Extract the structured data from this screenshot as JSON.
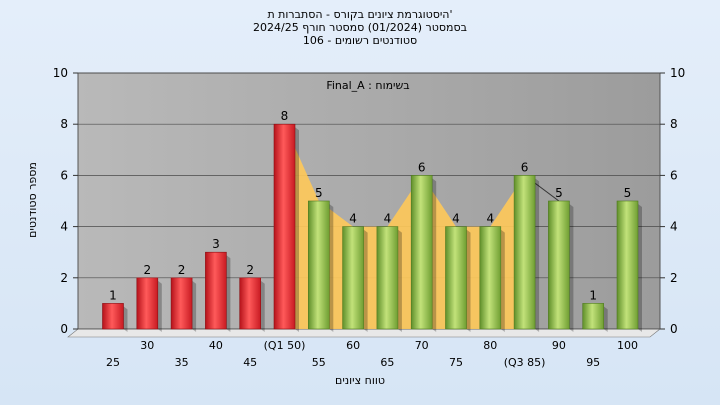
{
  "chart_data": {
    "type": "bar",
    "title_lines": [
      "היסטוגרמת ציונים בקורס - הסתברות ת'",
      "בסמסטר  (01/2024)  סמסטר חורף 2024/25",
      "סטודנטים רשומים - 106"
    ],
    "annotation": "Final_A : בשימוח",
    "xlabel": "טווח ציונים",
    "ylabel": "מספר סטודנטים",
    "ylim": [
      0,
      10
    ],
    "yticks": [
      0,
      2,
      4,
      6,
      8,
      10
    ],
    "grid": true,
    "categories": [
      "25",
      "30",
      "35",
      "40",
      "45",
      "(Q1 50)",
      "55",
      "60",
      "65",
      "70",
      "75",
      "80",
      "(Q3 85)",
      "90",
      "95",
      "100"
    ],
    "values": [
      1,
      2,
      2,
      3,
      2,
      8,
      5,
      4,
      4,
      6,
      4,
      4,
      6,
      5,
      1,
      5
    ],
    "colors": {
      "low": "#e8232b",
      "high": "#8fc14a",
      "band": "#fdc85a",
      "plot_bg": "#a9a9a9"
    },
    "quartile_band": {
      "from_category": "(Q1 50)",
      "to_category": "(Q3 85)"
    }
  }
}
